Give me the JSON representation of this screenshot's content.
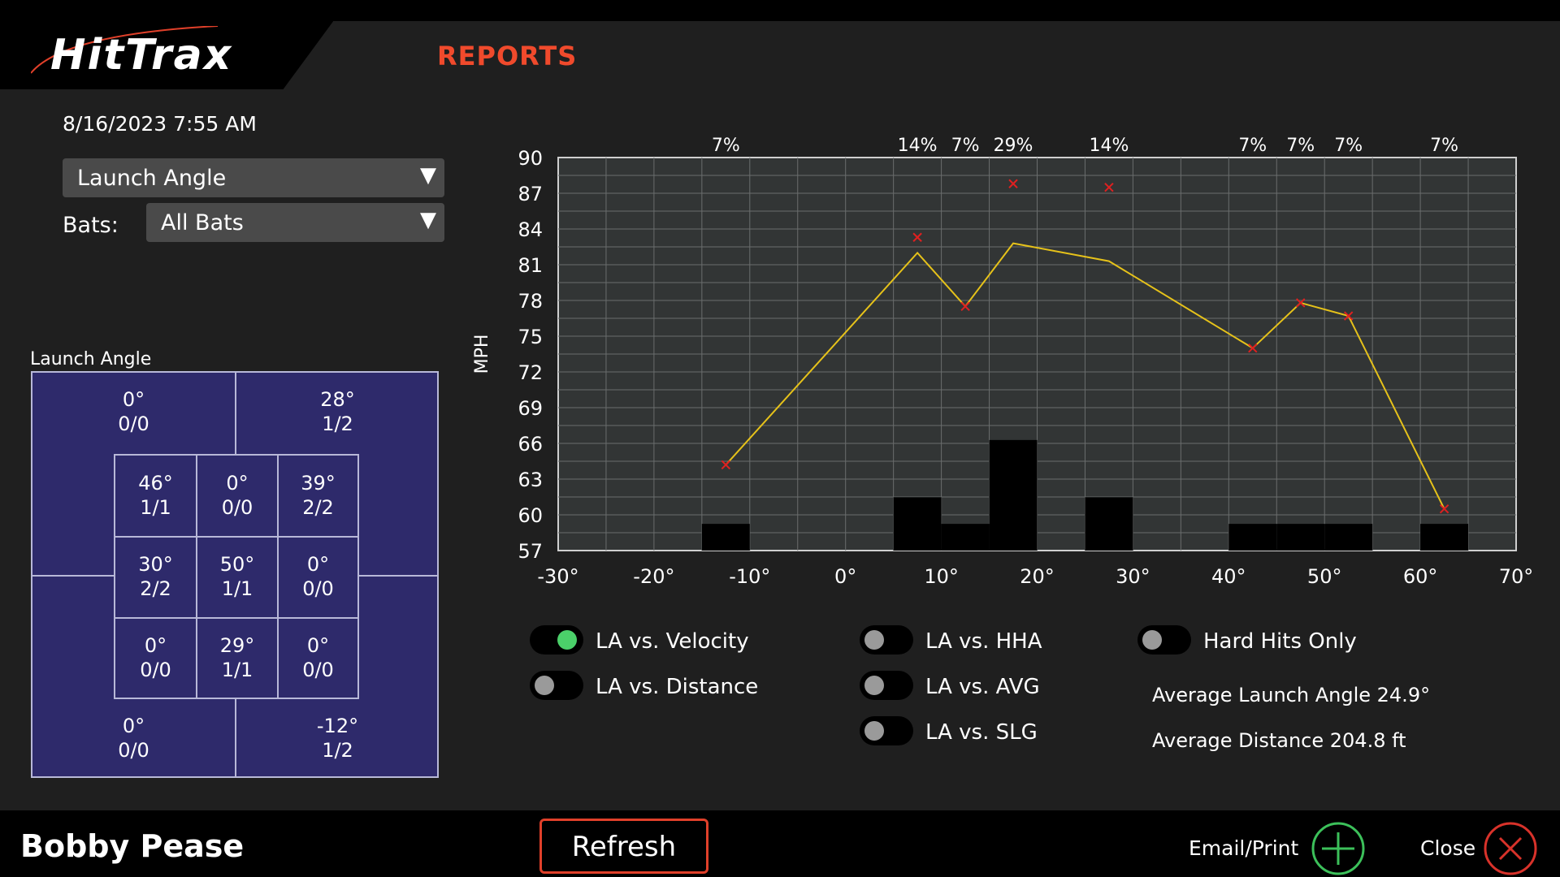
{
  "app": {
    "logo_text": "HitTrax",
    "page_title": "REPORTS"
  },
  "left": {
    "datetime": "8/16/2023 7:55 AM",
    "metric_select": {
      "value": "Launch Angle"
    },
    "bats_label": "Bats:",
    "bats_select": {
      "value": "All Bats"
    }
  },
  "zone": {
    "title": "Launch Angle",
    "outer": {
      "top_left": {
        "angle": "0°",
        "ratio": "0/0"
      },
      "top_right": {
        "angle": "28°",
        "ratio": "1/2"
      },
      "bottom_left": {
        "angle": "0°",
        "ratio": "0/0"
      },
      "bottom_right": {
        "angle": "-12°",
        "ratio": "1/2"
      }
    },
    "inner": [
      {
        "angle": "46°",
        "ratio": "1/1"
      },
      {
        "angle": "0°",
        "ratio": "0/0"
      },
      {
        "angle": "39°",
        "ratio": "2/2"
      },
      {
        "angle": "30°",
        "ratio": "2/2"
      },
      {
        "angle": "50°",
        "ratio": "1/1"
      },
      {
        "angle": "0°",
        "ratio": "0/0"
      },
      {
        "angle": "0°",
        "ratio": "0/0"
      },
      {
        "angle": "29°",
        "ratio": "1/1"
      },
      {
        "angle": "0°",
        "ratio": "0/0"
      }
    ]
  },
  "chart_data": {
    "type": "line",
    "title": "",
    "xlabel": "",
    "ylabel": "MPH",
    "xlim": [
      -30,
      70
    ],
    "ylim": [
      57,
      90
    ],
    "x_ticks": [
      "-30°",
      "-20°",
      "-10°",
      "0°",
      "10°",
      "20°",
      "30°",
      "40°",
      "50°",
      "60°",
      "70°"
    ],
    "y_ticks": [
      "90",
      "87",
      "84",
      "81",
      "78",
      "75",
      "72",
      "69",
      "66",
      "63",
      "60",
      "57"
    ],
    "grid": true,
    "line_color": "#e6c21a",
    "marker_color": "#e02020",
    "line_points": [
      {
        "x": -12.5,
        "y": 64.2
      },
      {
        "x": 7.5,
        "y": 82.0
      },
      {
        "x": 12.5,
        "y": 77.5
      },
      {
        "x": 17.5,
        "y": 82.8
      },
      {
        "x": 27.5,
        "y": 81.3
      },
      {
        "x": 42.5,
        "y": 74.0
      },
      {
        "x": 47.5,
        "y": 77.8
      },
      {
        "x": 52.5,
        "y": 76.7
      },
      {
        "x": 62.5,
        "y": 60.5
      }
    ],
    "scatter_points": [
      {
        "x": -12.5,
        "y": 64.2
      },
      {
        "x": 7.5,
        "y": 83.3
      },
      {
        "x": 12.5,
        "y": 77.5
      },
      {
        "x": 17.5,
        "y": 87.8
      },
      {
        "x": 27.5,
        "y": 87.5
      },
      {
        "x": 42.5,
        "y": 74.0
      },
      {
        "x": 47.5,
        "y": 77.8
      },
      {
        "x": 52.5,
        "y": 76.7
      },
      {
        "x": 62.5,
        "y": 60.5
      }
    ],
    "histogram": [
      {
        "x0": -15,
        "x1": -10,
        "pct": 7,
        "label": "7%"
      },
      {
        "x0": 5,
        "x1": 10,
        "pct": 14,
        "label": "14%"
      },
      {
        "x0": 10,
        "x1": 15,
        "pct": 7,
        "label": "7%"
      },
      {
        "x0": 15,
        "x1": 20,
        "pct": 29,
        "label": "29%"
      },
      {
        "x0": 25,
        "x1": 30,
        "pct": 14,
        "label": "14%"
      },
      {
        "x0": 40,
        "x1": 45,
        "pct": 7,
        "label": "7%"
      },
      {
        "x0": 45,
        "x1": 50,
        "pct": 7,
        "label": "7%"
      },
      {
        "x0": 50,
        "x1": 55,
        "pct": 7,
        "label": "7%"
      },
      {
        "x0": 60,
        "x1": 65,
        "pct": 7,
        "label": "7%"
      }
    ]
  },
  "toggles": [
    {
      "id": "la-velocity",
      "label": "LA vs. Velocity",
      "on": true
    },
    {
      "id": "la-distance",
      "label": "LA vs. Distance",
      "on": false
    },
    {
      "id": "la-hha",
      "label": "LA vs. HHA",
      "on": false
    },
    {
      "id": "la-avg",
      "label": "LA vs. AVG",
      "on": false
    },
    {
      "id": "la-slg",
      "label": "LA vs. SLG",
      "on": false
    },
    {
      "id": "hard-hits",
      "label": "Hard Hits Only",
      "on": false
    }
  ],
  "stats": {
    "avg_launch_angle": "Average Launch Angle 24.9°",
    "avg_distance": "Average Distance 204.8 ft"
  },
  "footer": {
    "player": "Bobby Pease",
    "refresh": "Refresh",
    "email_print": "Email/Print",
    "close": "Close"
  },
  "colors": {
    "accent": "#f04a2c",
    "zone_bg": "#2e2a6b",
    "chart_bg": "#323535",
    "toggle_on": "#4bd06a"
  }
}
